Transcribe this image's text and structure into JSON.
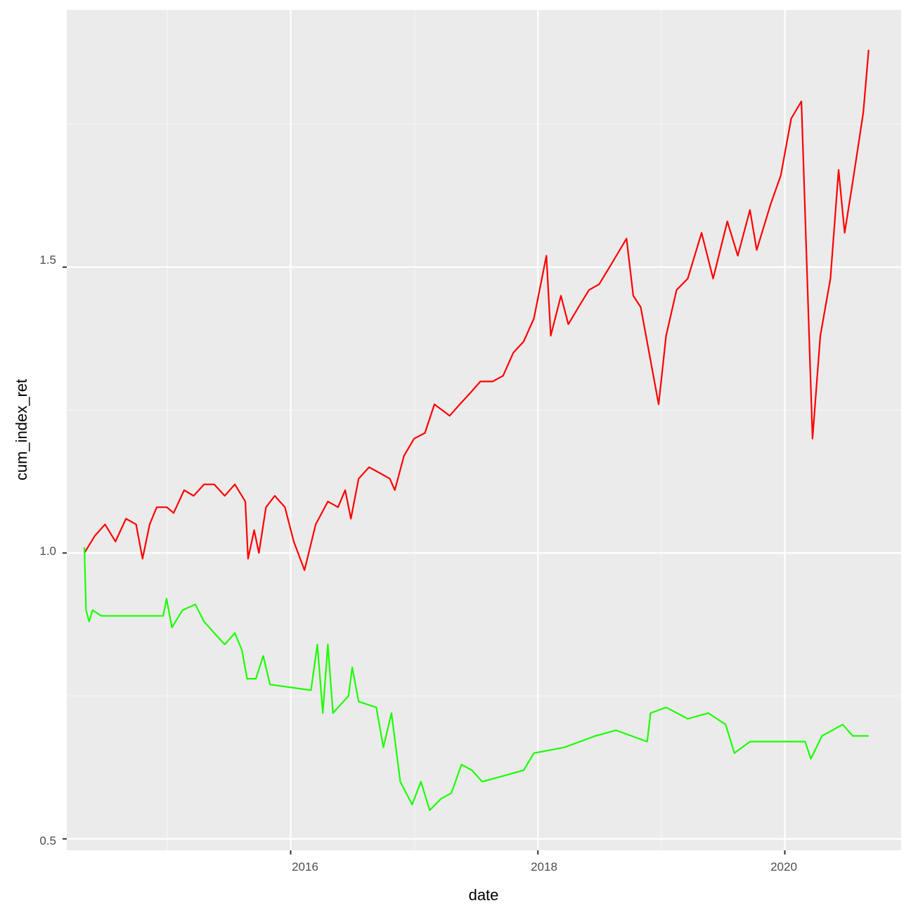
{
  "chart_data": {
    "type": "line",
    "title": "",
    "xlabel": "date",
    "ylabel": "cum_index_ret",
    "x_range": [
      "2014-03-10",
      "2020-12-10"
    ],
    "ylim": [
      0.48,
      1.95
    ],
    "x_ticks": [
      "2016",
      "2018",
      "2020"
    ],
    "y_ticks": [
      "0.5",
      "1.0",
      "1.5"
    ],
    "grid": true,
    "legend": "none",
    "series": [
      {
        "color": "#ff0000",
        "points": [
          [
            "2014-05-01",
            1.0
          ],
          [
            "2014-06-01",
            1.03
          ],
          [
            "2014-07-01",
            1.05
          ],
          [
            "2014-08-01",
            1.02
          ],
          [
            "2014-09-01",
            1.06
          ],
          [
            "2014-10-01",
            1.05
          ],
          [
            "2014-10-20",
            0.99
          ],
          [
            "2014-11-10",
            1.05
          ],
          [
            "2014-12-01",
            1.08
          ],
          [
            "2014-12-31",
            1.08
          ],
          [
            "2015-01-20",
            1.07
          ],
          [
            "2015-02-20",
            1.11
          ],
          [
            "2015-03-20",
            1.1
          ],
          [
            "2015-04-20",
            1.12
          ],
          [
            "2015-05-20",
            1.12
          ],
          [
            "2015-06-20",
            1.1
          ],
          [
            "2015-07-20",
            1.12
          ],
          [
            "2015-08-20",
            1.09
          ],
          [
            "2015-08-28",
            0.99
          ],
          [
            "2015-09-15",
            1.04
          ],
          [
            "2015-09-29",
            1.0
          ],
          [
            "2015-10-20",
            1.08
          ],
          [
            "2015-11-15",
            1.1
          ],
          [
            "2015-12-15",
            1.08
          ],
          [
            "2016-01-10",
            1.02
          ],
          [
            "2016-02-11",
            0.97
          ],
          [
            "2016-03-15",
            1.05
          ],
          [
            "2016-04-20",
            1.09
          ],
          [
            "2016-05-20",
            1.08
          ],
          [
            "2016-06-10",
            1.11
          ],
          [
            "2016-06-27",
            1.06
          ],
          [
            "2016-07-20",
            1.13
          ],
          [
            "2016-08-20",
            1.15
          ],
          [
            "2016-09-20",
            1.14
          ],
          [
            "2016-10-20",
            1.13
          ],
          [
            "2016-11-04",
            1.11
          ],
          [
            "2016-12-01",
            1.17
          ],
          [
            "2016-12-31",
            1.2
          ],
          [
            "2017-02-01",
            1.21
          ],
          [
            "2017-03-01",
            1.26
          ],
          [
            "2017-04-15",
            1.24
          ],
          [
            "2017-05-15",
            1.26
          ],
          [
            "2017-06-15",
            1.28
          ],
          [
            "2017-07-15",
            1.3
          ],
          [
            "2017-08-20",
            1.3
          ],
          [
            "2017-09-20",
            1.31
          ],
          [
            "2017-10-20",
            1.35
          ],
          [
            "2017-11-20",
            1.37
          ],
          [
            "2017-12-20",
            1.41
          ],
          [
            "2018-01-26",
            1.52
          ],
          [
            "2018-02-08",
            1.38
          ],
          [
            "2018-03-10",
            1.45
          ],
          [
            "2018-04-01",
            1.4
          ],
          [
            "2018-05-01",
            1.43
          ],
          [
            "2018-06-01",
            1.46
          ],
          [
            "2018-07-01",
            1.47
          ],
          [
            "2018-08-01",
            1.5
          ],
          [
            "2018-09-20",
            1.55
          ],
          [
            "2018-10-10",
            1.45
          ],
          [
            "2018-11-01",
            1.43
          ],
          [
            "2018-12-24",
            1.26
          ],
          [
            "2019-01-15",
            1.38
          ],
          [
            "2019-02-15",
            1.46
          ],
          [
            "2019-03-20",
            1.48
          ],
          [
            "2019-04-30",
            1.56
          ],
          [
            "2019-06-03",
            1.48
          ],
          [
            "2019-07-15",
            1.58
          ],
          [
            "2019-08-15",
            1.52
          ],
          [
            "2019-09-20",
            1.6
          ],
          [
            "2019-10-10",
            1.53
          ],
          [
            "2019-11-20",
            1.61
          ],
          [
            "2019-12-20",
            1.66
          ],
          [
            "2020-01-20",
            1.76
          ],
          [
            "2020-02-19",
            1.79
          ],
          [
            "2020-03-23",
            1.2
          ],
          [
            "2020-04-15",
            1.38
          ],
          [
            "2020-05-15",
            1.48
          ],
          [
            "2020-06-08",
            1.67
          ],
          [
            "2020-06-26",
            1.56
          ],
          [
            "2020-07-20",
            1.65
          ],
          [
            "2020-08-20",
            1.77
          ],
          [
            "2020-09-05",
            1.88
          ]
        ]
      },
      {
        "color": "#1aff00",
        "points": [
          [
            "2014-05-01",
            1.01
          ],
          [
            "2014-05-06",
            0.9
          ],
          [
            "2014-05-15",
            0.88
          ],
          [
            "2014-05-25",
            0.9
          ],
          [
            "2014-06-20",
            0.89
          ],
          [
            "2014-09-01",
            0.89
          ],
          [
            "2014-12-20",
            0.89
          ],
          [
            "2014-12-30",
            0.92
          ],
          [
            "2015-01-15",
            0.87
          ],
          [
            "2015-02-15",
            0.9
          ],
          [
            "2015-03-25",
            0.91
          ],
          [
            "2015-04-20",
            0.88
          ],
          [
            "2015-05-20",
            0.86
          ],
          [
            "2015-06-20",
            0.84
          ],
          [
            "2015-07-20",
            0.86
          ],
          [
            "2015-08-10",
            0.83
          ],
          [
            "2015-08-25",
            0.78
          ],
          [
            "2015-09-20",
            0.78
          ],
          [
            "2015-10-12",
            0.82
          ],
          [
            "2015-11-01",
            0.77
          ],
          [
            "2016-03-01",
            0.76
          ],
          [
            "2016-03-20",
            0.84
          ],
          [
            "2016-04-05",
            0.72
          ],
          [
            "2016-04-20",
            0.84
          ],
          [
            "2016-05-05",
            0.72
          ],
          [
            "2016-06-20",
            0.75
          ],
          [
            "2016-07-01",
            0.8
          ],
          [
            "2016-07-20",
            0.74
          ],
          [
            "2016-09-10",
            0.73
          ],
          [
            "2016-10-01",
            0.66
          ],
          [
            "2016-10-25",
            0.72
          ],
          [
            "2016-11-20",
            0.6
          ],
          [
            "2016-12-25",
            0.56
          ],
          [
            "2017-01-20",
            0.6
          ],
          [
            "2017-02-15",
            0.55
          ],
          [
            "2017-03-20",
            0.57
          ],
          [
            "2017-04-20",
            0.58
          ],
          [
            "2017-05-20",
            0.63
          ],
          [
            "2017-06-20",
            0.62
          ],
          [
            "2017-07-20",
            0.6
          ],
          [
            "2017-09-20",
            0.61
          ],
          [
            "2017-11-20",
            0.62
          ],
          [
            "2017-12-20",
            0.65
          ],
          [
            "2018-03-20",
            0.66
          ],
          [
            "2018-06-20",
            0.68
          ],
          [
            "2018-08-20",
            0.69
          ],
          [
            "2018-11-20",
            0.67
          ],
          [
            "2018-11-30",
            0.72
          ],
          [
            "2019-01-15",
            0.73
          ],
          [
            "2019-03-20",
            0.71
          ],
          [
            "2019-05-20",
            0.72
          ],
          [
            "2019-07-10",
            0.7
          ],
          [
            "2019-08-05",
            0.65
          ],
          [
            "2019-09-20",
            0.67
          ],
          [
            "2019-12-20",
            0.67
          ],
          [
            "2020-01-20",
            0.67
          ],
          [
            "2020-03-01",
            0.67
          ],
          [
            "2020-03-18",
            0.64
          ],
          [
            "2020-04-20",
            0.68
          ],
          [
            "2020-06-20",
            0.7
          ],
          [
            "2020-07-20",
            0.68
          ],
          [
            "2020-09-05",
            0.68
          ]
        ]
      }
    ]
  }
}
